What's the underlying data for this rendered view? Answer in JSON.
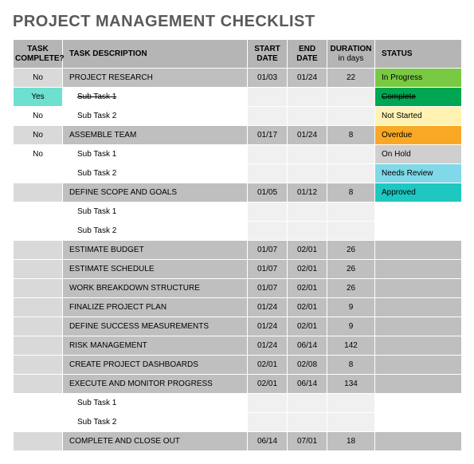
{
  "title": "PROJECT MANAGEMENT CHECKLIST",
  "columns": {
    "complete": "TASK COMPLETE?",
    "desc": "TASK DESCRIPTION",
    "start": "START DATE",
    "end": "END DATE",
    "dur": "DURATION",
    "dur_sub": "in days",
    "status": "STATUS"
  },
  "colors": {
    "header_bg": "#b5b5b5",
    "main_bg": "#bfbfbf",
    "main_complete_bg": "#d9d9d9",
    "sub_bg": "#f0f0f0",
    "white": "#ffffff"
  },
  "status_colors": {
    "In Progress": "#7ac943",
    "Complete": "#00a651",
    "Not Started": "#fff2b3",
    "Overdue": "#f9a825",
    "On Hold": "#cfcfcf",
    "Needs Review": "#7fd9e8",
    "Approved": "#1fc7c1"
  },
  "complete_colors": {
    "Yes": "#6de0d0"
  },
  "rows": [
    {
      "type": "main",
      "complete": "No",
      "desc": "PROJECT RESEARCH",
      "start": "01/03",
      "end": "01/24",
      "dur": "22",
      "status": "In Progress"
    },
    {
      "type": "sub",
      "complete": "Yes",
      "desc": "Sub Task 1",
      "start": "",
      "end": "",
      "dur": "",
      "status": "Complete",
      "strike": true
    },
    {
      "type": "sub",
      "complete": "No",
      "desc": "Sub Task 2",
      "start": "",
      "end": "",
      "dur": "",
      "status": "Not Started"
    },
    {
      "type": "main",
      "complete": "No",
      "desc": "ASSEMBLE TEAM",
      "start": "01/17",
      "end": "01/24",
      "dur": "8",
      "status": "Overdue"
    },
    {
      "type": "sub",
      "complete": "No",
      "desc": "Sub Task 1",
      "start": "",
      "end": "",
      "dur": "",
      "status": "On Hold"
    },
    {
      "type": "sub",
      "complete": "",
      "desc": "Sub Task 2",
      "start": "",
      "end": "",
      "dur": "",
      "status": "Needs Review"
    },
    {
      "type": "main",
      "complete": "",
      "desc": "DEFINE SCOPE AND GOALS",
      "start": "01/05",
      "end": "01/12",
      "dur": "8",
      "status": "Approved"
    },
    {
      "type": "sub",
      "complete": "",
      "desc": "Sub Task 1",
      "start": "",
      "end": "",
      "dur": "",
      "status": ""
    },
    {
      "type": "sub",
      "complete": "",
      "desc": "Sub Task 2",
      "start": "",
      "end": "",
      "dur": "",
      "status": ""
    },
    {
      "type": "main",
      "complete": "",
      "desc": "ESTIMATE BUDGET",
      "start": "01/07",
      "end": "02/01",
      "dur": "26",
      "status": ""
    },
    {
      "type": "main",
      "complete": "",
      "desc": "ESTIMATE SCHEDULE",
      "start": "01/07",
      "end": "02/01",
      "dur": "26",
      "status": ""
    },
    {
      "type": "main",
      "complete": "",
      "desc": "WORK BREAKDOWN STRUCTURE",
      "start": "01/07",
      "end": "02/01",
      "dur": "26",
      "status": ""
    },
    {
      "type": "main",
      "complete": "",
      "desc": "FINALIZE PROJECT PLAN",
      "start": "01/24",
      "end": "02/01",
      "dur": "9",
      "status": ""
    },
    {
      "type": "main",
      "complete": "",
      "desc": "DEFINE SUCCESS MEASUREMENTS",
      "start": "01/24",
      "end": "02/01",
      "dur": "9",
      "status": ""
    },
    {
      "type": "main",
      "complete": "",
      "desc": "RISK MANAGEMENT",
      "start": "01/24",
      "end": "06/14",
      "dur": "142",
      "status": ""
    },
    {
      "type": "main",
      "complete": "",
      "desc": "CREATE PROJECT DASHBOARDS",
      "start": "02/01",
      "end": "02/08",
      "dur": "8",
      "status": ""
    },
    {
      "type": "main",
      "complete": "",
      "desc": "EXECUTE AND MONITOR PROGRESS",
      "start": "02/01",
      "end": "06/14",
      "dur": "134",
      "status": ""
    },
    {
      "type": "sub",
      "complete": "",
      "desc": "Sub Task 1",
      "start": "",
      "end": "",
      "dur": "",
      "status": ""
    },
    {
      "type": "sub",
      "complete": "",
      "desc": "Sub Task 2",
      "start": "",
      "end": "",
      "dur": "",
      "status": ""
    },
    {
      "type": "main",
      "complete": "",
      "desc": "COMPLETE AND CLOSE OUT",
      "start": "06/14",
      "end": "07/01",
      "dur": "18",
      "status": ""
    }
  ]
}
